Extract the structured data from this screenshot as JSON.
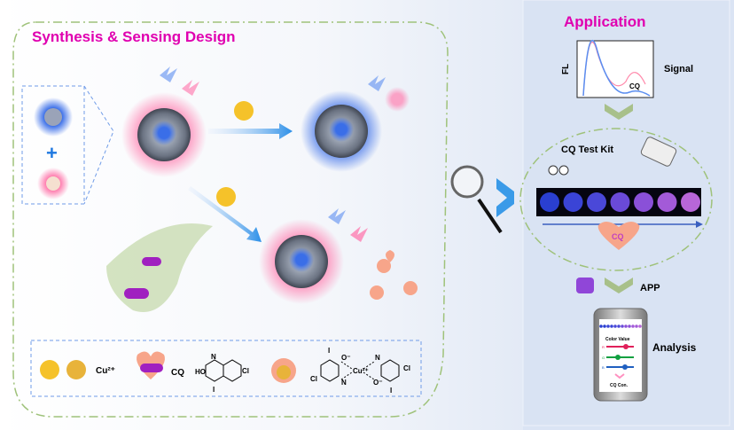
{
  "left_panel": {
    "title": "Synthesis & Sensing Design",
    "legend": {
      "cu_label": "Cu²⁺",
      "cq_label": "CQ",
      "cq_structure_atoms": {
        "ho": "HO",
        "n": "N",
        "cl": "Cl",
        "i": "I"
      },
      "complex_atoms": {
        "o1": "O⁻",
        "o2": "O⁻",
        "cu": "Cu²⁺",
        "n1": "N",
        "n2": "N",
        "cl1": "Cl",
        "cl2": "Cl",
        "i1": "I",
        "i2": "I"
      }
    }
  },
  "right_panel": {
    "title": "Application",
    "signal": {
      "ylabel": "FL",
      "peak_label": "CQ",
      "label": "Signal"
    },
    "test_kit": {
      "label": "CQ Test Kit",
      "arrow_label": "CQ",
      "well_colors": [
        "#2a3fd0",
        "#3a44d6",
        "#4a48d8",
        "#6a4ad8",
        "#8a50d8",
        "#a35ad8",
        "#b866d8"
      ]
    },
    "app_label": "APP",
    "phone": {
      "color_value_label": "Color Value",
      "r": "R",
      "g": "G",
      "b": "B",
      "result_label": "CQ Con."
    },
    "analysis_label": "Analysis"
  },
  "colors": {
    "title": "#e000b0",
    "dash_green": "#9fc27a",
    "dash_blue": "#6f9be8",
    "right_bg": "#dbe4f4"
  }
}
